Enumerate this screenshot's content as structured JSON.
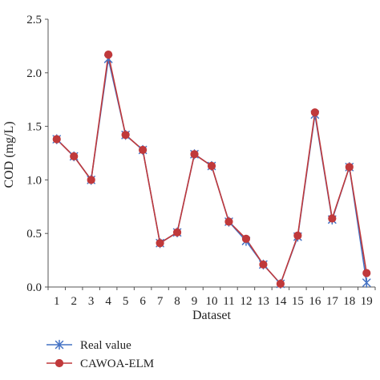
{
  "chart_data": {
    "type": "line",
    "title": "",
    "xlabel": "Dataset",
    "ylabel": "COD (mg/L)",
    "ylim": [
      0,
      2.5
    ],
    "yticks": [
      "0.0",
      "0.5",
      "1.0",
      "1.5",
      "2.0",
      "2.5"
    ],
    "categories": [
      "1",
      "2",
      "3",
      "4",
      "5",
      "6",
      "7",
      "8",
      "9",
      "10",
      "11",
      "12",
      "13",
      "14",
      "15",
      "16",
      "17",
      "18",
      "19"
    ],
    "grid": false,
    "legend_position": "bottom-left",
    "series": [
      {
        "name": "Real value",
        "marker": "asterisk",
        "color": "#4472c4",
        "values": [
          1.38,
          1.22,
          1.0,
          2.13,
          1.42,
          1.28,
          0.41,
          0.51,
          1.24,
          1.13,
          0.61,
          0.43,
          0.21,
          0.03,
          0.47,
          1.61,
          0.63,
          1.12,
          0.04
        ]
      },
      {
        "name": "CAWOA-ELM",
        "marker": "circle",
        "color": "#c0393b",
        "values": [
          1.38,
          1.22,
          1.0,
          2.17,
          1.42,
          1.28,
          0.41,
          0.51,
          1.24,
          1.13,
          0.61,
          0.45,
          0.21,
          0.03,
          0.48,
          1.63,
          0.64,
          1.12,
          0.13
        ]
      }
    ]
  }
}
